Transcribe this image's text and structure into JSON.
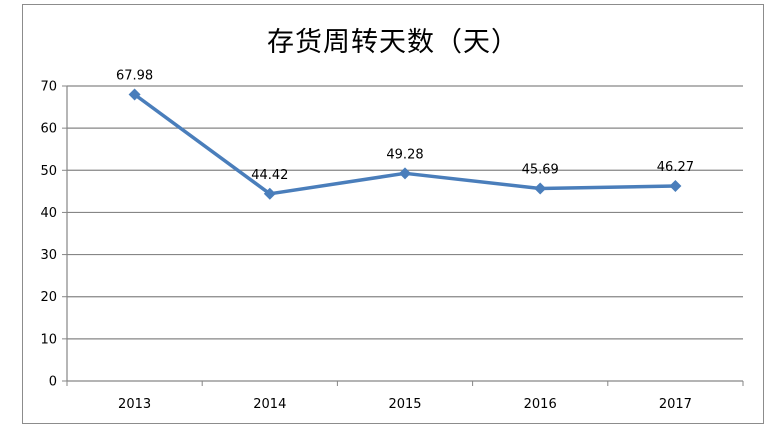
{
  "chart_data": {
    "type": "line",
    "title": "存货周转天数（天）",
    "categories": [
      "2013",
      "2014",
      "2015",
      "2016",
      "2017"
    ],
    "series": [
      {
        "values": [
          67.98,
          44.42,
          49.28,
          45.69,
          46.27
        ]
      }
    ],
    "data_labels": [
      "67.98",
      "44.42",
      "49.28",
      "45.69",
      "46.27"
    ],
    "yticks": [
      "0",
      "10",
      "20",
      "30",
      "40",
      "50",
      "60",
      "70"
    ],
    "ylim": [
      0,
      70
    ],
    "grid": true,
    "legend": "none",
    "line_color": "#4a7ebb",
    "marker": "diamond"
  }
}
